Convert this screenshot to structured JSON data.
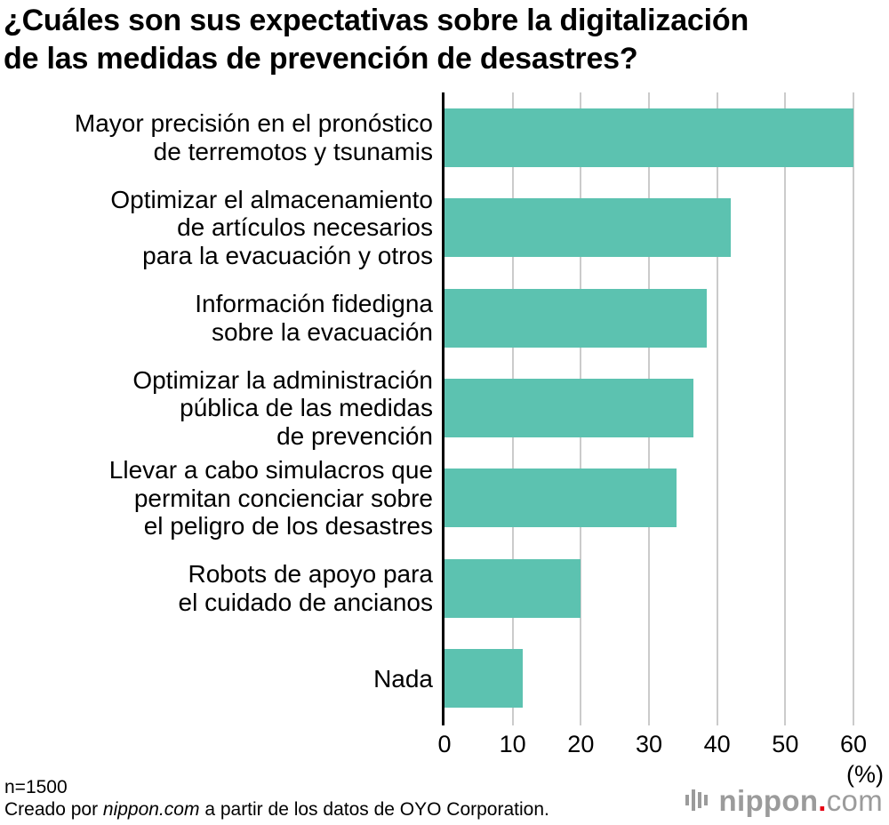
{
  "title": "¿Cuáles son sus expectativas sobre la digitalización\nde las medidas de prevención de desastres?",
  "chart_data": {
    "type": "bar",
    "orientation": "horizontal",
    "categories": [
      "Mayor precisión en el pronóstico\nde terremotos y tsunamis",
      "Optimizar el almacenamiento\nde artículos necesarios\npara la evacuación y otros",
      "Información fidedigna\nsobre la evacuación",
      "Optimizar la administración\npública de las medidas\nde prevención",
      "Llevar a cabo simulacros que\npermitan concienciar sobre\nel peligro de los desastres",
      "Robots de apoyo para\nel cuidado de ancianos",
      "Nada"
    ],
    "values": [
      60,
      42,
      38.5,
      36.5,
      34,
      20,
      11.5
    ],
    "xlim": [
      0,
      60
    ],
    "xticks": [
      0,
      10,
      20,
      30,
      40,
      50,
      60
    ],
    "unit_label": "(%)",
    "bar_color": "#5cc2b0",
    "grid": true,
    "gridline_color": "#cbcbcb"
  },
  "footer": {
    "sample_size": "n=1500",
    "credit_prefix": "Creado por ",
    "credit_brand": "nippon.com",
    "credit_suffix": " a partir de los datos de OYO Corporation."
  },
  "logo": {
    "name": "nippon",
    "dot": ".",
    "tld": "com",
    "text_color": "#9b9b9b",
    "dot_color": "#e60012"
  }
}
